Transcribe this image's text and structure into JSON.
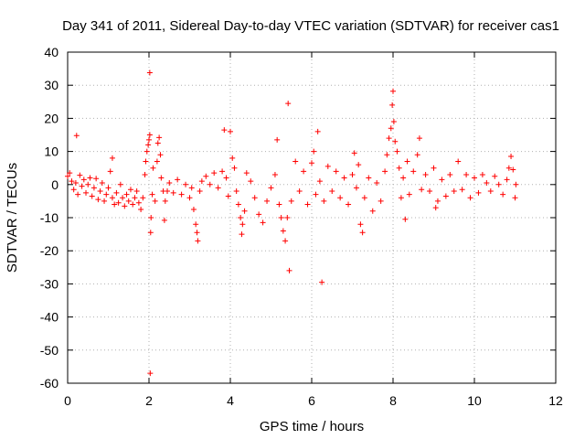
{
  "chart_data": {
    "type": "scatter",
    "title": "Day 341 of 2011, Sidereal Day-to-day VTEC variation (SDTVAR) for receiver cas1",
    "xlabel": "GPS time / hours",
    "ylabel": "SDTVAR / TECUs",
    "xlim": [
      0,
      12
    ],
    "ylim": [
      -60,
      40
    ],
    "xticks": [
      0,
      2,
      4,
      6,
      8,
      10,
      12
    ],
    "yticks": [
      -60,
      -50,
      -40,
      -30,
      -20,
      -10,
      0,
      10,
      20,
      30,
      40
    ],
    "grid": true,
    "marker": "+",
    "color": "#ff0000",
    "series": [
      {
        "name": "SDTVAR",
        "points": [
          [
            0.0,
            2.5
          ],
          [
            0.05,
            3.5
          ],
          [
            0.1,
            1.0
          ],
          [
            0.15,
            -1.5
          ],
          [
            0.2,
            0.5
          ],
          [
            0.22,
            14.8
          ],
          [
            0.25,
            -3.0
          ],
          [
            0.3,
            2.8
          ],
          [
            0.35,
            -0.5
          ],
          [
            0.4,
            1.5
          ],
          [
            0.45,
            -2.5
          ],
          [
            0.5,
            0.0
          ],
          [
            0.55,
            2.0
          ],
          [
            0.6,
            -3.5
          ],
          [
            0.65,
            -1.0
          ],
          [
            0.7,
            1.8
          ],
          [
            0.75,
            -4.5
          ],
          [
            0.8,
            -2.0
          ],
          [
            0.85,
            0.5
          ],
          [
            0.9,
            -5.0
          ],
          [
            0.95,
            -3.0
          ],
          [
            1.0,
            -1.0
          ],
          [
            1.05,
            4.0
          ],
          [
            1.1,
            8.0
          ],
          [
            1.1,
            -4.0
          ],
          [
            1.15,
            -6.0
          ],
          [
            1.2,
            -2.5
          ],
          [
            1.25,
            -5.5
          ],
          [
            1.3,
            0.0
          ],
          [
            1.35,
            -4.0
          ],
          [
            1.4,
            -6.5
          ],
          [
            1.45,
            -3.0
          ],
          [
            1.5,
            -5.0
          ],
          [
            1.55,
            -1.5
          ],
          [
            1.6,
            -6.0
          ],
          [
            1.65,
            -4.0
          ],
          [
            1.7,
            -2.0
          ],
          [
            1.75,
            -5.5
          ],
          [
            1.8,
            -7.5
          ],
          [
            1.85,
            -4.0
          ],
          [
            1.9,
            3.0
          ],
          [
            1.92,
            7.0
          ],
          [
            1.95,
            10.0
          ],
          [
            1.98,
            12.0
          ],
          [
            2.0,
            13.5
          ],
          [
            2.02,
            15.0
          ],
          [
            2.02,
            33.8
          ],
          [
            2.03,
            -57.0
          ],
          [
            2.04,
            -14.5
          ],
          [
            2.05,
            -10.0
          ],
          [
            2.08,
            -3.0
          ],
          [
            2.1,
            5.0
          ],
          [
            2.15,
            -5.0
          ],
          [
            2.2,
            7.0
          ],
          [
            2.22,
            12.5
          ],
          [
            2.25,
            14.2
          ],
          [
            2.28,
            9.0
          ],
          [
            2.3,
            2.0
          ],
          [
            2.35,
            -2.0
          ],
          [
            2.38,
            -10.8
          ],
          [
            2.4,
            -5.0
          ],
          [
            2.45,
            -2.0
          ],
          [
            2.5,
            0.5
          ],
          [
            2.6,
            -2.5
          ],
          [
            2.7,
            1.5
          ],
          [
            2.8,
            -3.0
          ],
          [
            2.9,
            0.0
          ],
          [
            3.0,
            -4.0
          ],
          [
            3.05,
            -1.0
          ],
          [
            3.1,
            -7.5
          ],
          [
            3.15,
            -12.0
          ],
          [
            3.18,
            -14.5
          ],
          [
            3.2,
            -17.0
          ],
          [
            3.25,
            -2.0
          ],
          [
            3.3,
            1.0
          ],
          [
            3.4,
            2.5
          ],
          [
            3.5,
            0.0
          ],
          [
            3.6,
            3.5
          ],
          [
            3.7,
            -1.0
          ],
          [
            3.8,
            4.0
          ],
          [
            3.85,
            16.5
          ],
          [
            3.9,
            2.0
          ],
          [
            3.95,
            -3.5
          ],
          [
            4.0,
            16.0
          ],
          [
            4.05,
            8.0
          ],
          [
            4.1,
            5.0
          ],
          [
            4.15,
            -2.0
          ],
          [
            4.2,
            -6.0
          ],
          [
            4.25,
            -10.0
          ],
          [
            4.28,
            -15.0
          ],
          [
            4.3,
            -12.0
          ],
          [
            4.35,
            -8.0
          ],
          [
            4.4,
            3.5
          ],
          [
            4.5,
            1.0
          ],
          [
            4.6,
            -4.0
          ],
          [
            4.7,
            -9.0
          ],
          [
            4.8,
            -11.5
          ],
          [
            4.9,
            -5.0
          ],
          [
            5.0,
            -1.0
          ],
          [
            5.1,
            3.0
          ],
          [
            5.15,
            13.5
          ],
          [
            5.2,
            -6.0
          ],
          [
            5.25,
            -10.0
          ],
          [
            5.3,
            -14.0
          ],
          [
            5.35,
            -17.0
          ],
          [
            5.4,
            -10.0
          ],
          [
            5.42,
            24.5
          ],
          [
            5.45,
            -26.0
          ],
          [
            5.5,
            -5.0
          ],
          [
            5.6,
            7.0
          ],
          [
            5.7,
            -2.0
          ],
          [
            5.8,
            4.0
          ],
          [
            5.9,
            -6.0
          ],
          [
            6.0,
            6.5
          ],
          [
            6.05,
            10.0
          ],
          [
            6.1,
            -3.0
          ],
          [
            6.15,
            16.0
          ],
          [
            6.2,
            1.0
          ],
          [
            6.25,
            -29.5
          ],
          [
            6.3,
            -5.0
          ],
          [
            6.4,
            5.5
          ],
          [
            6.5,
            -2.0
          ],
          [
            6.6,
            4.0
          ],
          [
            6.7,
            -4.0
          ],
          [
            6.8,
            2.0
          ],
          [
            6.9,
            -6.0
          ],
          [
            7.0,
            3.0
          ],
          [
            7.05,
            9.5
          ],
          [
            7.1,
            -1.0
          ],
          [
            7.15,
            6.0
          ],
          [
            7.2,
            -12.0
          ],
          [
            7.25,
            -14.5
          ],
          [
            7.3,
            -4.0
          ],
          [
            7.4,
            2.0
          ],
          [
            7.5,
            -8.0
          ],
          [
            7.6,
            0.5
          ],
          [
            7.7,
            -5.0
          ],
          [
            7.8,
            4.0
          ],
          [
            7.85,
            9.0
          ],
          [
            7.9,
            14.0
          ],
          [
            7.95,
            17.0
          ],
          [
            7.98,
            24.0
          ],
          [
            8.0,
            28.2
          ],
          [
            8.02,
            19.0
          ],
          [
            8.05,
            13.0
          ],
          [
            8.1,
            10.0
          ],
          [
            8.15,
            5.0
          ],
          [
            8.2,
            -4.0
          ],
          [
            8.25,
            2.0
          ],
          [
            8.3,
            -10.5
          ],
          [
            8.35,
            7.0
          ],
          [
            8.4,
            -3.0
          ],
          [
            8.5,
            4.0
          ],
          [
            8.6,
            9.0
          ],
          [
            8.65,
            14.0
          ],
          [
            8.7,
            -1.5
          ],
          [
            8.8,
            3.0
          ],
          [
            8.9,
            -2.0
          ],
          [
            9.0,
            5.0
          ],
          [
            9.05,
            -7.0
          ],
          [
            9.1,
            -5.0
          ],
          [
            9.2,
            1.5
          ],
          [
            9.3,
            -3.5
          ],
          [
            9.4,
            3.0
          ],
          [
            9.5,
            -2.0
          ],
          [
            9.6,
            7.0
          ],
          [
            9.7,
            -1.5
          ],
          [
            9.8,
            3.0
          ],
          [
            9.9,
            -4.0
          ],
          [
            10.0,
            2.0
          ],
          [
            10.1,
            -2.5
          ],
          [
            10.2,
            3.0
          ],
          [
            10.3,
            0.5
          ],
          [
            10.4,
            -2.0
          ],
          [
            10.5,
            2.5
          ],
          [
            10.6,
            0.0
          ],
          [
            10.7,
            -3.0
          ],
          [
            10.8,
            1.5
          ],
          [
            10.85,
            5.0
          ],
          [
            10.9,
            8.5
          ],
          [
            10.95,
            4.5
          ],
          [
            11.0,
            -4.0
          ],
          [
            11.02,
            0.0
          ]
        ]
      }
    ]
  }
}
